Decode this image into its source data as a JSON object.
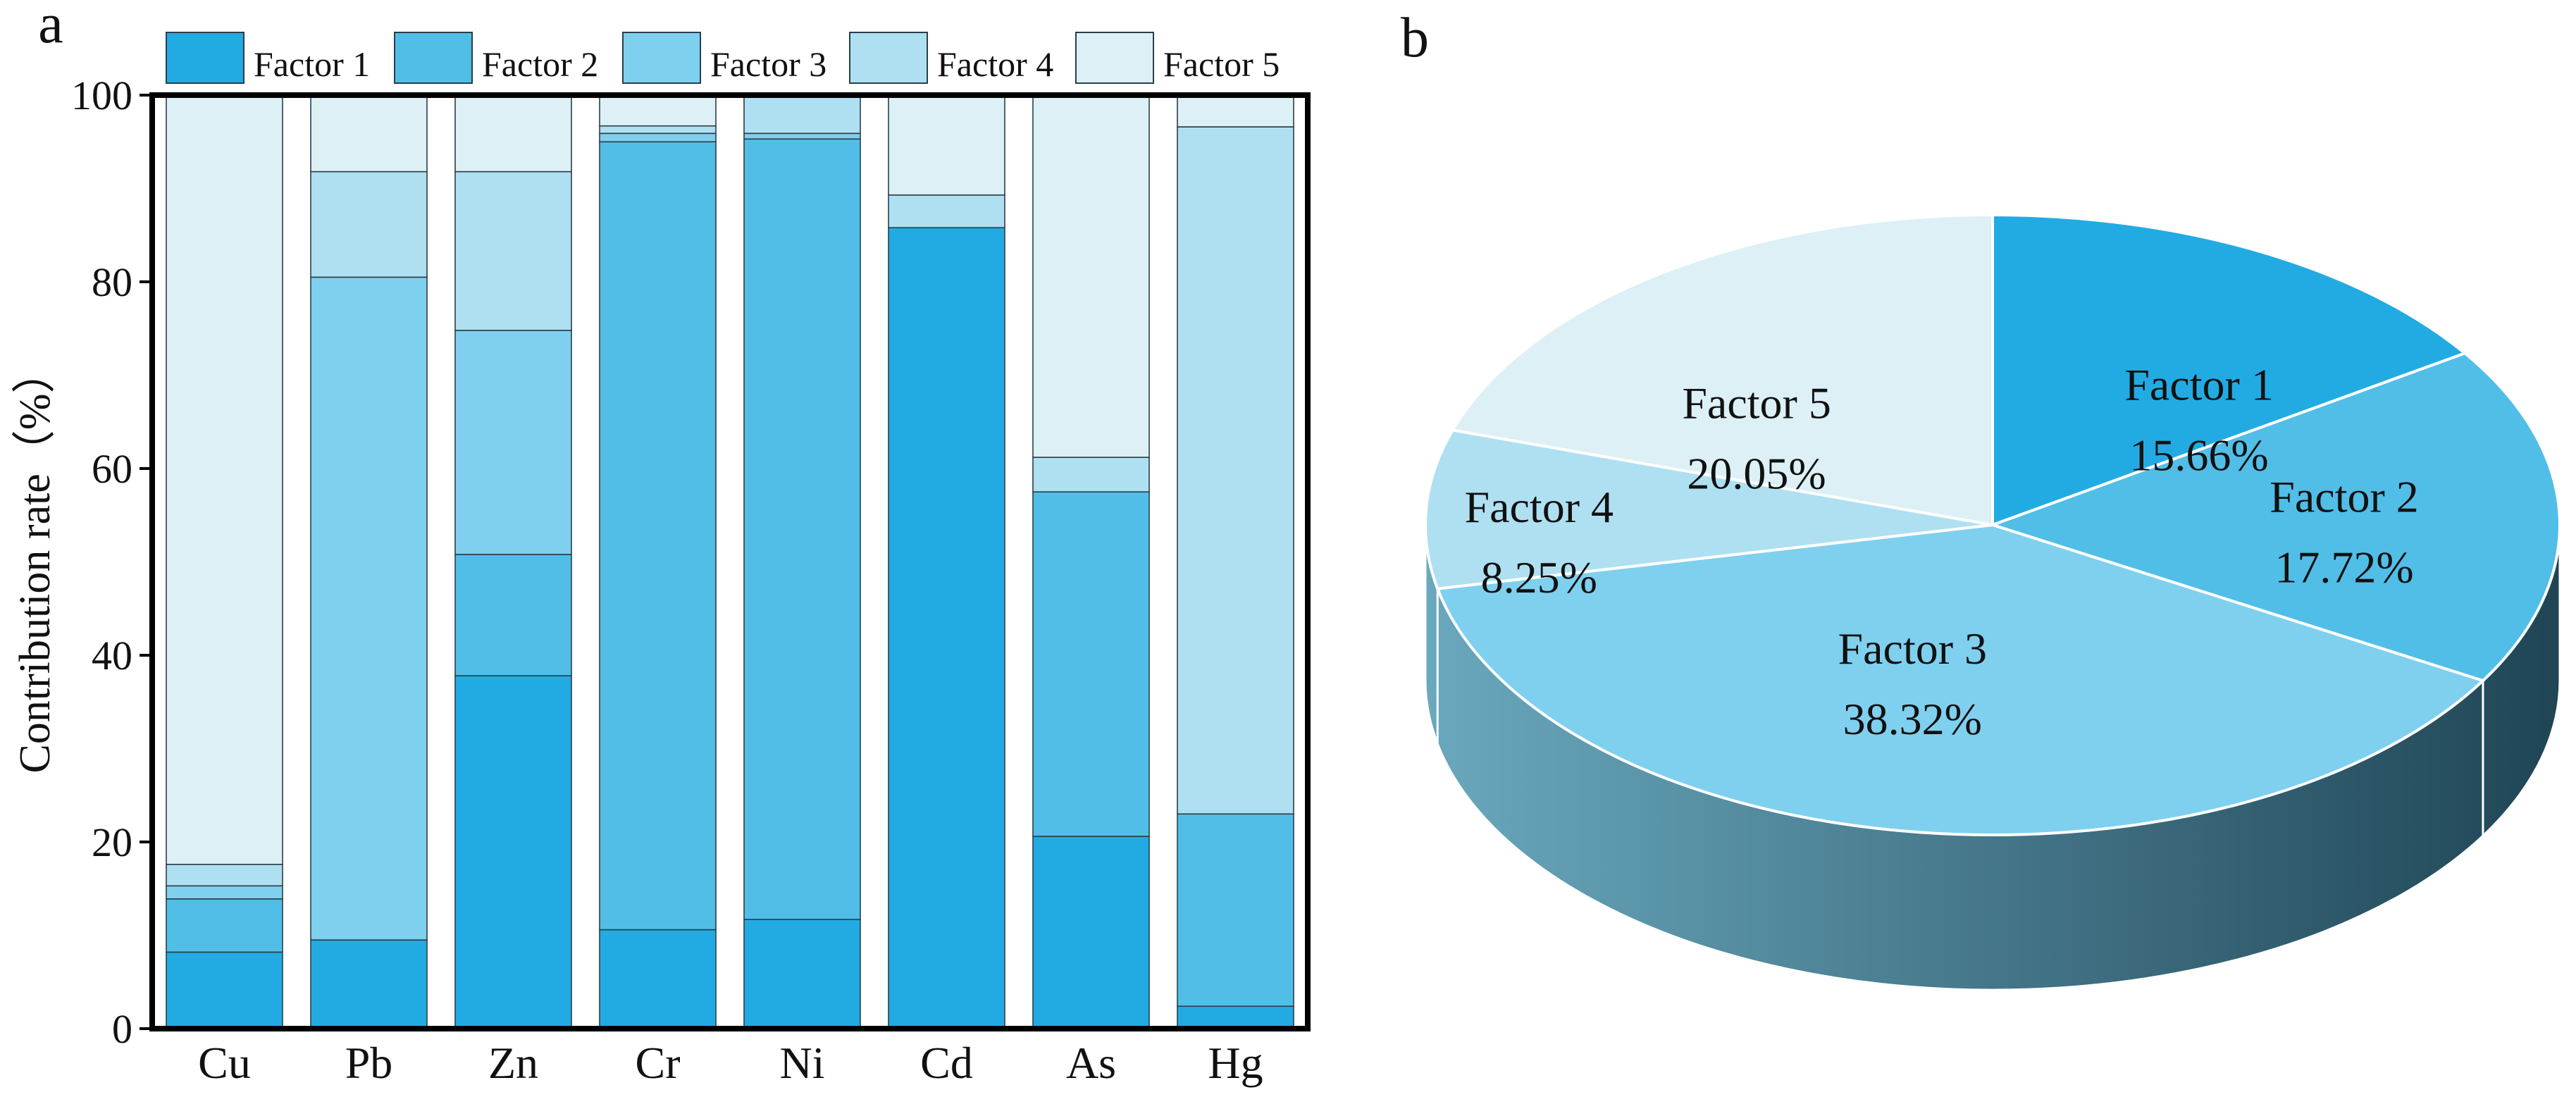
{
  "colors": {
    "factor_1": "#22abe2",
    "factor_2": "#51bee8",
    "factor_3": "#7fd0ee",
    "factor_4": "#afe0f1",
    "factor_5": "#dcf0f6",
    "side_light": "#6aa8bd",
    "side_dark": "#1f4555",
    "frame": "#000000"
  },
  "chart_data": [
    {
      "panel_label": "a",
      "type": "bar",
      "stacked": true,
      "title": "",
      "xlabel": "",
      "ylabel": "Contribution rate（%）",
      "ylim": [
        0,
        100
      ],
      "yticks": [
        0,
        20,
        40,
        60,
        80,
        100
      ],
      "categories": [
        "Cu",
        "Pb",
        "Zn",
        "Cr",
        "Ni",
        "Cd",
        "As",
        "Hg"
      ],
      "legend": [
        "Factor 1",
        "Factor 2",
        "Factor 3",
        "Factor 4",
        "Factor 5"
      ],
      "legend_position": "top",
      "series": [
        {
          "name": "Factor 1",
          "values": [
            8.2,
            9.5,
            37.8,
            10.6,
            11.7,
            85.8,
            20.6,
            2.4
          ]
        },
        {
          "name": "Factor 2",
          "values": [
            5.7,
            0.0,
            13.0,
            84.4,
            83.6,
            0.0,
            36.9,
            20.6
          ]
        },
        {
          "name": "Factor 3",
          "values": [
            1.4,
            71.0,
            24.0,
            0.9,
            0.6,
            0.0,
            0.0,
            0.0
          ]
        },
        {
          "name": "Factor 4",
          "values": [
            2.3,
            11.3,
            17.0,
            0.8,
            4.1,
            3.5,
            3.7,
            73.6
          ]
        },
        {
          "name": "Factor 5",
          "values": [
            82.4,
            8.2,
            8.2,
            3.3,
            0.0,
            10.7,
            38.8,
            3.4
          ]
        }
      ]
    },
    {
      "panel_label": "b",
      "type": "pie",
      "style": "3d",
      "title": "",
      "labels": [
        "Factor 1",
        "Factor 2",
        "Factor 3",
        "Factor 4",
        "Factor 5"
      ],
      "values": [
        15.66,
        17.72,
        38.32,
        8.25,
        20.05
      ],
      "value_labels": [
        "15.66%",
        "17.72%",
        "38.32%",
        "8.25%",
        "20.05%"
      ]
    }
  ]
}
